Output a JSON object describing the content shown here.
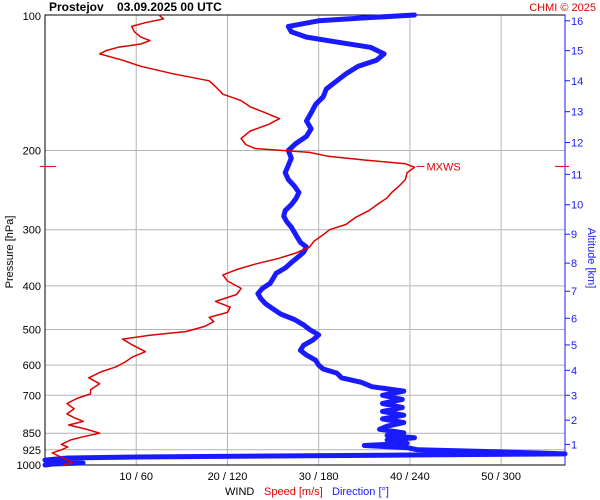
{
  "header": {
    "title": "Prostejov    03.09.2025 00 UTC",
    "copyright": "CHMI © 2025"
  },
  "axes": {
    "pressure_label": "Pressure [hPa]",
    "altitude_label": "Altitude [km]",
    "wind_label": "WIND",
    "speed_label": "Speed [m/s]",
    "direction_label": "Direction [°]",
    "mxws_label": "MXWS"
  },
  "colors": {
    "speed": "#e00000",
    "direction": "#1a1aff",
    "grid": "#b4b4b4"
  },
  "chart_data": {
    "type": "line",
    "y_scale": "log-pressure",
    "ylim_hpa": [
      1000,
      100
    ],
    "pressure_ticks": [
      {
        "p": 100,
        "label": "100"
      },
      {
        "p": 200,
        "label": "200"
      },
      {
        "p": 300,
        "label": "300"
      },
      {
        "p": 400,
        "label": "400"
      },
      {
        "p": 500,
        "label": "500"
      },
      {
        "p": 600,
        "label": "600"
      },
      {
        "p": 700,
        "label": "700"
      },
      {
        "p": 850,
        "label": "850"
      },
      {
        "p": 925,
        "label": "925"
      },
      {
        "p": 1000,
        "label": "1000"
      }
    ],
    "x_ticks": [
      {
        "speed": 10,
        "dir": 60,
        "label": "10 / 60"
      },
      {
        "speed": 20,
        "dir": 120,
        "label": "20 / 120"
      },
      {
        "speed": 30,
        "dir": 180,
        "label": "30 / 180"
      },
      {
        "speed": 40,
        "dir": 240,
        "label": "40 / 240"
      },
      {
        "speed": 50,
        "dir": 300,
        "label": "50 / 300"
      }
    ],
    "speed_range": [
      0,
      57
    ],
    "direction_range": [
      0,
      342
    ],
    "altitude_ticks_km": [
      1,
      2,
      3,
      4,
      5,
      6,
      7,
      8,
      9,
      10,
      11,
      12,
      13,
      14,
      15,
      16
    ],
    "altitude_pressure_hpa": [
      900,
      795,
      700,
      616,
      541,
      472,
      411,
      356,
      307,
      264,
      226,
      192,
      164,
      140,
      120,
      103
    ],
    "mxws_pressure_hpa": 217,
    "series": [
      {
        "name": "Speed [m/s]",
        "points": [
          [
            1000,
            2.0
          ],
          [
            990,
            3.0
          ],
          [
            975,
            2.5
          ],
          [
            955,
            1.5
          ],
          [
            940,
            0.8
          ],
          [
            925,
            1.8
          ],
          [
            912,
            2.5
          ],
          [
            900,
            1.8
          ],
          [
            880,
            2.8
          ],
          [
            865,
            4.2
          ],
          [
            850,
            6.0
          ],
          [
            832,
            4.5
          ],
          [
            815,
            2.6
          ],
          [
            800,
            4.2
          ],
          [
            785,
            3.2
          ],
          [
            770,
            2.4
          ],
          [
            750,
            3.2
          ],
          [
            730,
            2.4
          ],
          [
            710,
            3.6
          ],
          [
            695,
            5.0
          ],
          [
            680,
            5.0
          ],
          [
            660,
            6.0
          ],
          [
            640,
            4.8
          ],
          [
            620,
            6.2
          ],
          [
            605,
            7.8
          ],
          [
            590,
            8.8
          ],
          [
            575,
            9.6
          ],
          [
            560,
            11.0
          ],
          [
            540,
            9.5
          ],
          [
            525,
            8.5
          ],
          [
            515,
            11.5
          ],
          [
            505,
            15.5
          ],
          [
            492,
            17.5
          ],
          [
            480,
            18.5
          ],
          [
            470,
            18.0
          ],
          [
            458,
            20.0
          ],
          [
            446,
            20.3
          ],
          [
            433,
            18.7
          ],
          [
            418,
            21.0
          ],
          [
            405,
            21.5
          ],
          [
            390,
            20.0
          ],
          [
            378,
            19.5
          ],
          [
            368,
            21.0
          ],
          [
            358,
            23.0
          ],
          [
            348,
            25.5
          ],
          [
            338,
            27.5
          ],
          [
            328,
            29.0
          ],
          [
            318,
            29.5
          ],
          [
            308,
            30.5
          ],
          [
            300,
            31.2
          ],
          [
            292,
            33.0
          ],
          [
            282,
            34.0
          ],
          [
            272,
            35.5
          ],
          [
            263,
            36.5
          ],
          [
            255,
            37.5
          ],
          [
            248,
            38.0
          ],
          [
            240,
            38.8
          ],
          [
            232,
            39.5
          ],
          [
            224,
            39.7
          ],
          [
            218,
            40.5
          ],
          [
            214,
            39.5
          ],
          [
            210,
            35.0
          ],
          [
            206,
            31.0
          ],
          [
            202,
            29.0
          ],
          [
            198,
            23.0
          ],
          [
            194,
            22.0
          ],
          [
            188,
            21.5
          ],
          [
            181,
            22.5
          ],
          [
            175,
            24.5
          ],
          [
            170,
            25.7
          ],
          [
            165,
            24.2
          ],
          [
            160,
            22.5
          ],
          [
            155,
            21.5
          ],
          [
            150,
            19.5
          ],
          [
            145,
            18.8
          ],
          [
            140,
            18.0
          ],
          [
            135,
            14.0
          ],
          [
            130,
            10.5
          ],
          [
            126,
            8.5
          ],
          [
            122,
            6.0
          ],
          [
            120,
            6.7
          ],
          [
            118,
            8.0
          ],
          [
            116,
            10.5
          ],
          [
            114,
            11.5
          ],
          [
            112,
            10.5
          ],
          [
            109,
            9.8
          ],
          [
            106,
            9.5
          ],
          [
            104,
            11.0
          ],
          [
            102,
            13.0
          ],
          [
            100,
            12.5
          ]
        ]
      },
      {
        "name": "Direction [°]",
        "points": [
          [
            1000,
            0
          ],
          [
            995,
            5
          ],
          [
            990,
            25
          ],
          [
            985,
            10
          ],
          [
            975,
            0
          ],
          [
            965,
            15
          ],
          [
            960,
            60
          ],
          [
            950,
            240
          ],
          [
            945,
            342
          ],
          [
            935,
            300
          ],
          [
            925,
            245
          ],
          [
            915,
            238
          ],
          [
            905,
            210
          ],
          [
            895,
            238
          ],
          [
            880,
            225
          ],
          [
            870,
            243
          ],
          [
            860,
            225
          ],
          [
            848,
            236
          ],
          [
            833,
            220
          ],
          [
            820,
            225
          ],
          [
            805,
            236
          ],
          [
            790,
            222
          ],
          [
            775,
            236
          ],
          [
            760,
            222
          ],
          [
            745,
            235
          ],
          [
            730,
            222
          ],
          [
            715,
            235
          ],
          [
            700,
            222
          ],
          [
            685,
            236
          ],
          [
            670,
            215
          ],
          [
            655,
            208
          ],
          [
            640,
            195
          ],
          [
            625,
            192
          ],
          [
            612,
            183
          ],
          [
            600,
            180
          ],
          [
            585,
            178
          ],
          [
            570,
            172
          ],
          [
            556,
            168
          ],
          [
            542,
            170
          ],
          [
            528,
            176
          ],
          [
            514,
            180
          ],
          [
            500,
            174
          ],
          [
            488,
            170
          ],
          [
            475,
            164
          ],
          [
            462,
            155
          ],
          [
            450,
            150
          ],
          [
            438,
            145
          ],
          [
            427,
            142
          ],
          [
            416,
            140
          ],
          [
            405,
            143
          ],
          [
            395,
            148
          ],
          [
            385,
            150
          ],
          [
            375,
            152
          ],
          [
            365,
            158
          ],
          [
            355,
            162
          ],
          [
            346,
            166
          ],
          [
            337,
            170
          ],
          [
            328,
            172
          ],
          [
            320,
            168
          ],
          [
            312,
            166
          ],
          [
            304,
            164
          ],
          [
            296,
            162
          ],
          [
            288,
            159
          ],
          [
            280,
            157
          ],
          [
            272,
            158
          ],
          [
            264,
            162
          ],
          [
            256,
            165
          ],
          [
            248,
            167
          ],
          [
            240,
            164
          ],
          [
            232,
            160
          ],
          [
            224,
            158
          ],
          [
            216,
            160
          ],
          [
            208,
            162
          ],
          [
            200,
            160
          ],
          [
            193,
            165
          ],
          [
            186,
            172
          ],
          [
            179,
            175
          ],
          [
            172,
            172
          ],
          [
            165,
            175
          ],
          [
            158,
            178
          ],
          [
            152,
            183
          ],
          [
            146,
            185
          ],
          [
            140,
            192
          ],
          [
            135,
            198
          ],
          [
            130,
            206
          ],
          [
            126,
            218
          ],
          [
            122,
            223
          ],
          [
            118,
            214
          ],
          [
            115,
            193
          ],
          [
            112,
            172
          ],
          [
            109,
            162
          ],
          [
            106,
            160
          ],
          [
            103,
            180
          ],
          [
            101.5,
            210
          ],
          [
            100,
            243
          ]
        ]
      }
    ]
  }
}
